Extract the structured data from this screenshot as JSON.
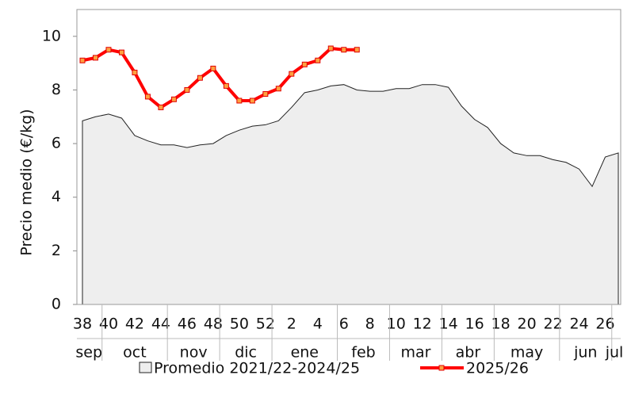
{
  "chart_data": {
    "type": "line",
    "y_label": "Precio medio (€/kg)",
    "categories": [
      "38",
      null,
      "40",
      null,
      "42",
      null,
      "44",
      null,
      "46",
      null,
      "48",
      null,
      "50",
      null,
      "52",
      null,
      "2",
      null,
      "4",
      null,
      "6",
      null,
      "8",
      null,
      "10",
      null,
      "12",
      null,
      "14",
      null,
      "16",
      null,
      "18",
      null,
      "20",
      null,
      "22",
      null,
      "24",
      null,
      "26",
      null
    ],
    "months": [
      {
        "label": "sep",
        "weeks": 2
      },
      {
        "label": "oct",
        "weeks": 5
      },
      {
        "label": "nov",
        "weeks": 4
      },
      {
        "label": "dic",
        "weeks": 4
      },
      {
        "label": "ene",
        "weeks": 5
      },
      {
        "label": "feb",
        "weeks": 4
      },
      {
        "label": "mar",
        "weeks": 4
      },
      {
        "label": "abr",
        "weeks": 4
      },
      {
        "label": "may",
        "weeks": 5
      },
      {
        "label": "jun",
        "weeks": 4
      },
      {
        "label": "jul",
        "weeks": 1
      }
    ],
    "series": [
      {
        "name": "Promedio 2021/22-2024/25",
        "kind": "area",
        "color": "#eeeeee",
        "values": [
          6.85,
          7.0,
          7.1,
          6.95,
          6.3,
          6.1,
          5.95,
          5.95,
          5.85,
          5.95,
          6.0,
          6.3,
          6.5,
          6.65,
          6.7,
          6.85,
          7.35,
          7.9,
          8.0,
          8.15,
          8.2,
          8.0,
          7.95,
          7.95,
          8.05,
          8.05,
          8.2,
          8.2,
          8.1,
          7.4,
          6.9,
          6.6,
          6.0,
          5.65,
          5.55,
          5.55,
          5.4,
          5.3,
          5.05,
          4.4,
          5.5,
          5.65
        ]
      },
      {
        "name": "2025/26",
        "kind": "line",
        "color": "#ff0000",
        "values": [
          9.1,
          9.2,
          9.5,
          9.4,
          8.65,
          7.75,
          7.35,
          7.65,
          8.0,
          8.45,
          8.8,
          8.15,
          7.6,
          7.6,
          7.85,
          8.05,
          8.6,
          8.95,
          9.1,
          9.55,
          9.5,
          9.5,
          null,
          null,
          null,
          null,
          null,
          null,
          null,
          null,
          null,
          null,
          null,
          null,
          null,
          null,
          null,
          null,
          null,
          null,
          null,
          null
        ]
      }
    ],
    "ylim": [
      0,
      11
    ],
    "yticks": [
      0,
      2,
      4,
      6,
      8,
      10
    ]
  }
}
